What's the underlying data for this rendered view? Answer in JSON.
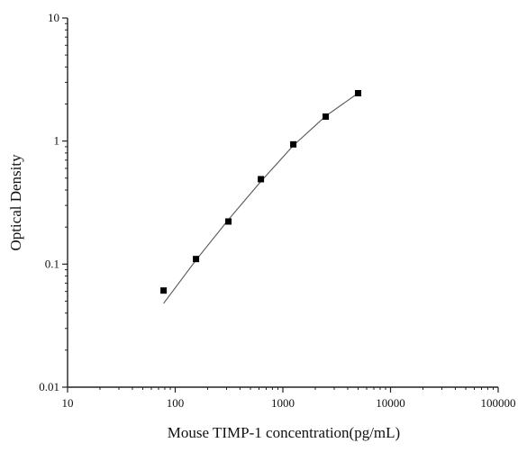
{
  "chart_data": {
    "type": "scatter",
    "title": "",
    "xlabel": "Mouse TIMP-1 concentration(pg/mL)",
    "ylabel": "Optical Density",
    "x_scale": "log",
    "y_scale": "log",
    "xlim": [
      10,
      100000
    ],
    "ylim": [
      0.01,
      10
    ],
    "x_ticks": [
      10,
      100,
      1000,
      10000,
      100000
    ],
    "x_tick_labels": [
      "10",
      "100",
      "1000",
      "10000",
      "100000"
    ],
    "y_ticks": [
      0.01,
      0.1,
      1,
      10
    ],
    "y_tick_labels": [
      "0.01",
      "0.1",
      "1",
      "10"
    ],
    "grid": false,
    "legend": "none",
    "series": [
      {
        "marker": "square",
        "color": "#000000",
        "x": [
          78,
          156,
          312,
          625,
          1250,
          2500,
          5000
        ],
        "y": [
          0.061,
          0.11,
          0.222,
          0.49,
          0.94,
          1.58,
          2.45
        ]
      }
    ],
    "fit_line": {
      "color": "#555555",
      "x": [
        78,
        156,
        312,
        625,
        1250,
        2500,
        5000
      ],
      "y": [
        0.048,
        0.108,
        0.23,
        0.47,
        0.92,
        1.6,
        2.45
      ]
    }
  }
}
